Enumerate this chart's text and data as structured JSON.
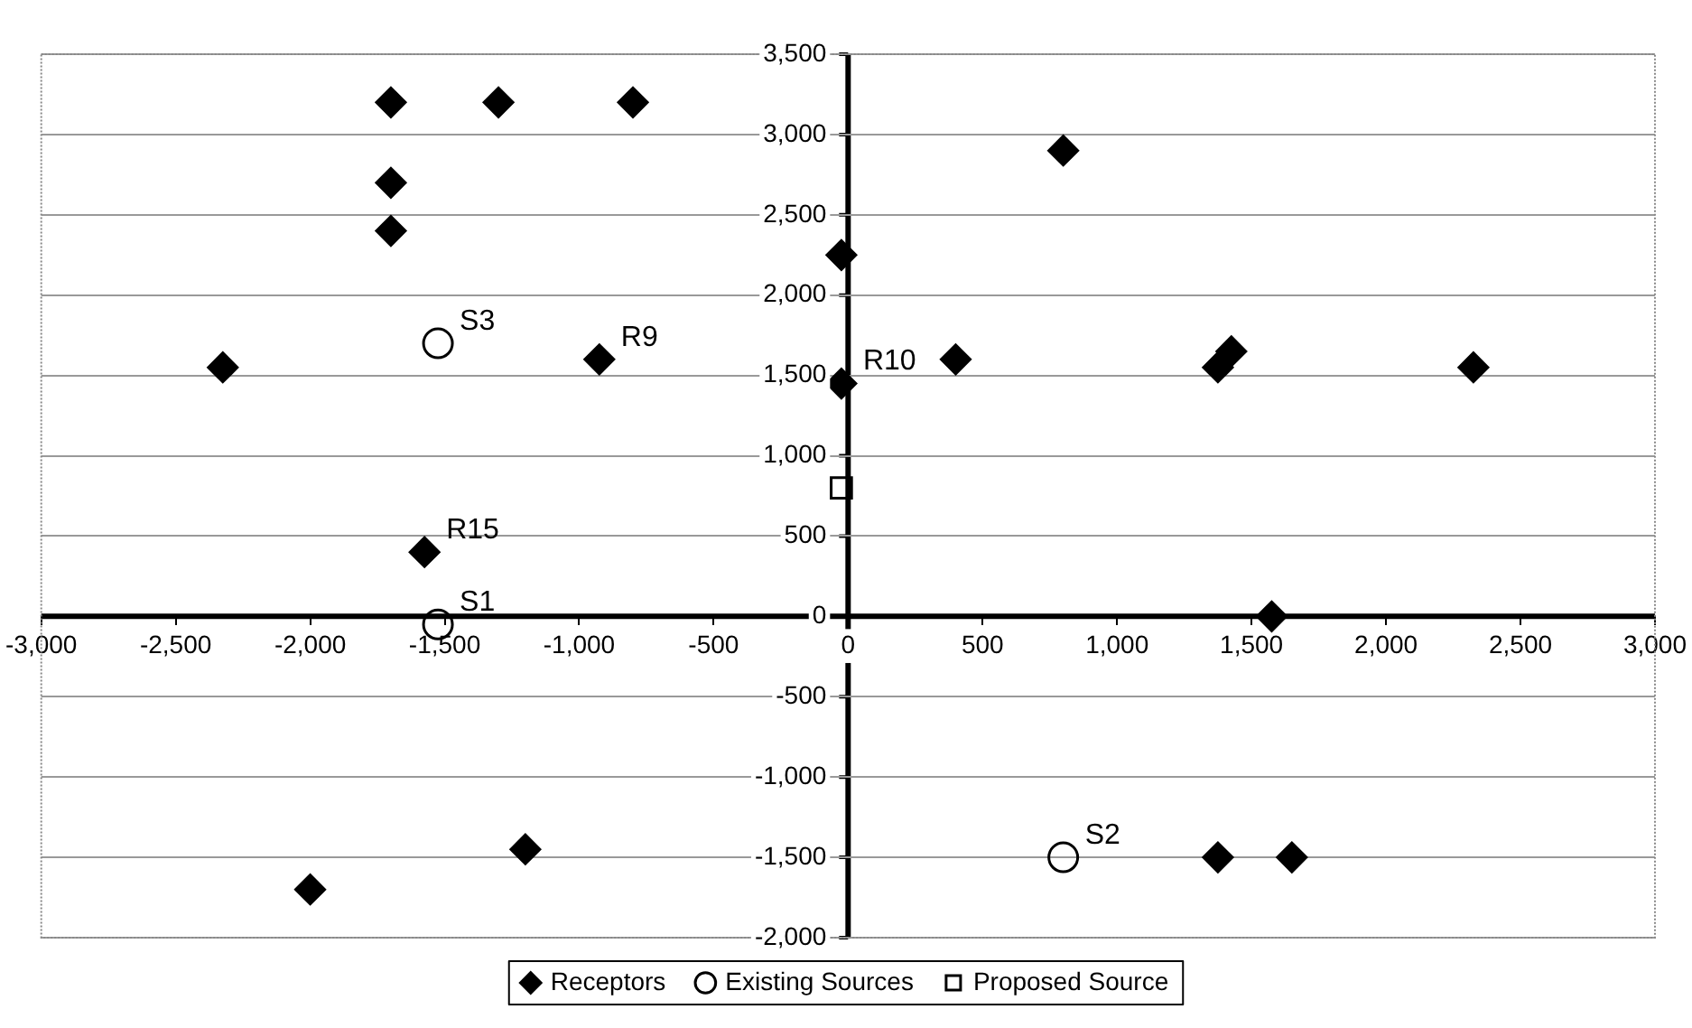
{
  "chart_data": {
    "type": "scatter",
    "series": [
      {
        "name": "Receptors",
        "color": "#000000",
        "marker": "diamond",
        "x": [
          -1700,
          -1300,
          -800,
          -1700,
          -1700,
          -25,
          -2325,
          -925,
          -25,
          -1575,
          800,
          400,
          1375,
          1425,
          2325,
          1575,
          1375,
          1650,
          -2000,
          -1200
        ],
        "values": [
          3200,
          3200,
          3200,
          2700,
          2400,
          2250,
          1550,
          1600,
          1450,
          400,
          2900,
          1600,
          1550,
          1650,
          1550,
          0,
          -1500,
          -1500,
          -1700,
          -1450
        ]
      },
      {
        "name": "Existing Sources",
        "color": "#000000",
        "marker": "circle",
        "x": [
          -1525,
          -1525,
          800
        ],
        "values": [
          1700,
          -50,
          -1500
        ]
      },
      {
        "name": "Proposed Source",
        "color": "#000000",
        "marker": "square",
        "x": [
          -25
        ],
        "values": [
          800
        ]
      }
    ],
    "annotations": [
      {
        "text": "R9",
        "x": -925,
        "y": 1600
      },
      {
        "text": "R10",
        "x": -25,
        "y": 1450
      },
      {
        "text": "R15",
        "x": -1575,
        "y": 400
      },
      {
        "text": "S1",
        "x": -1525,
        "y": -50
      },
      {
        "text": "S2",
        "x": 800,
        "y": -1500
      },
      {
        "text": "S3",
        "x": -1525,
        "y": 1700
      }
    ],
    "xlim": [
      -3000,
      3000
    ],
    "xticks": [
      {
        "value": -3000,
        "label": "-3,000"
      },
      {
        "value": -2500,
        "label": "-2,500"
      },
      {
        "value": -2000,
        "label": "-2,000"
      },
      {
        "value": -1500,
        "label": "-1,500"
      },
      {
        "value": -1000,
        "label": "-1,000"
      },
      -500,
      0,
      500,
      {
        "value": 1000,
        "label": "1,000"
      },
      {
        "value": 1500,
        "label": "1,500"
      },
      {
        "value": 2000,
        "label": "2,000"
      },
      {
        "value": 2500,
        "label": "2,500"
      },
      {
        "value": 3000,
        "label": "3,000"
      }
    ],
    "ylim": [
      -2000,
      3500
    ],
    "yticks": [
      {
        "value": -2000,
        "label": "-2,000"
      },
      {
        "value": -1500,
        "label": "-1,500"
      },
      {
        "value": -1000,
        "label": "-1,000"
      },
      -500,
      0,
      500,
      {
        "value": 1000,
        "label": "1,000"
      },
      {
        "value": 1500,
        "label": "1,500"
      },
      {
        "value": 2000,
        "label": "2,000"
      },
      {
        "value": 2500,
        "label": "2,500"
      },
      {
        "value": 3000,
        "label": "3,000"
      },
      {
        "value": 3500,
        "label": "3,500"
      }
    ],
    "grid": "y",
    "legend": "bottom"
  }
}
